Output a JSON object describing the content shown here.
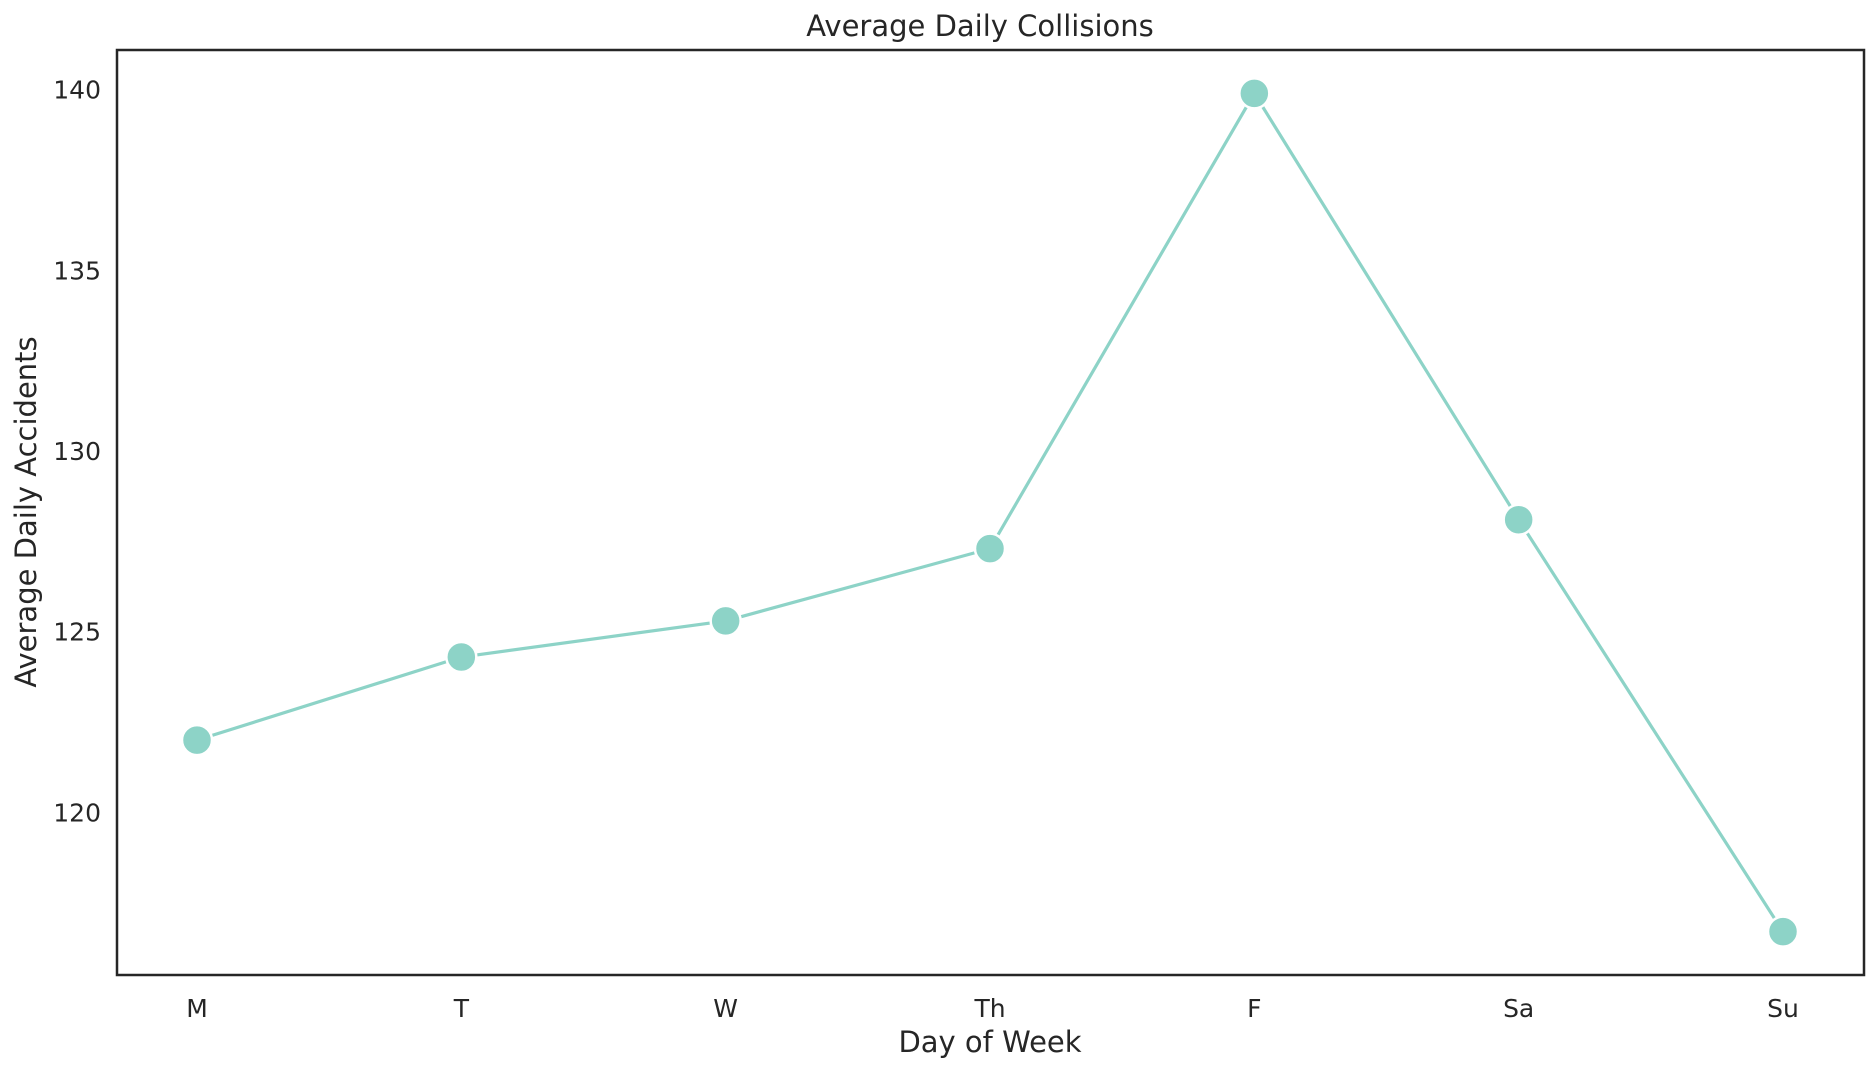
{
  "chart_data": {
    "type": "line",
    "title": "Average Daily Collisions",
    "xlabel": "Day of Week",
    "ylabel": "Average Daily Accidents",
    "categories": [
      "M",
      "T",
      "W",
      "Th",
      "F",
      "Sa",
      "Su"
    ],
    "series": [
      {
        "values": [
          122.0,
          124.3,
          125.3,
          127.3,
          139.9,
          128.1,
          116.7
        ]
      }
    ],
    "yticks": [
      120,
      125,
      130,
      135,
      140
    ],
    "ylim": [
      115.5,
      141.1
    ],
    "grid": false,
    "legend": "none",
    "color": "#8dd3c7"
  }
}
